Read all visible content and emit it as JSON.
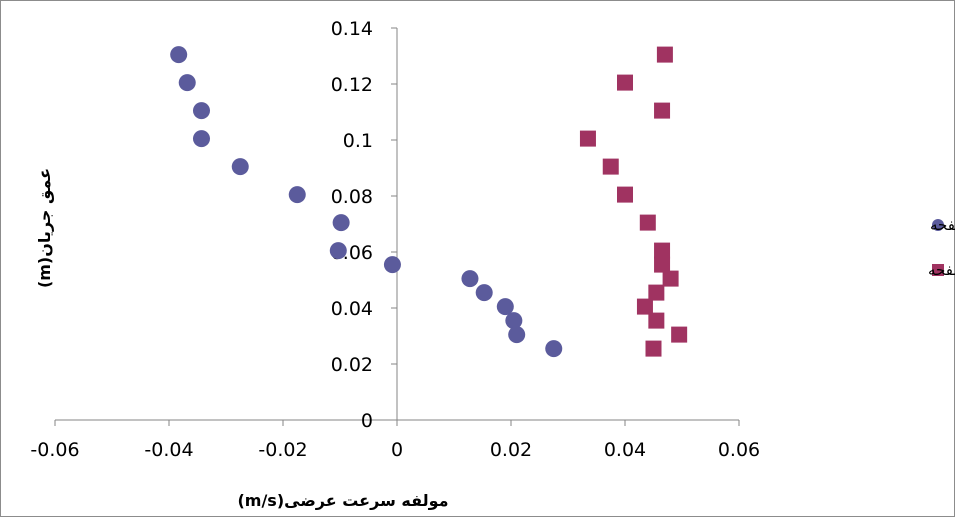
{
  "chart_data": {
    "type": "scatter",
    "xlabel": "مولفه سرعت عرضی(m/s)",
    "ylabel": "عمق جریان(m)",
    "xlim": [
      -0.06,
      0.06
    ],
    "ylim": [
      0,
      0.14
    ],
    "x_ticks": [
      "-0.06",
      "-0.04",
      "-0.02",
      "0",
      "0.02",
      "0.04",
      "0.06"
    ],
    "y_ticks": [
      "0",
      "0.02",
      "0.04",
      "0.06",
      "0.08",
      "0.1",
      "0.12",
      "0.14"
    ],
    "grid": false,
    "legend_position": "right",
    "series": [
      {
        "name": "بدون صفحه",
        "marker": "circle",
        "color": "#5b5b9c",
        "points": [
          [
            -0.0383,
            0.1305
          ],
          [
            -0.0368,
            0.1205
          ],
          [
            -0.0343,
            0.1105
          ],
          [
            -0.0343,
            0.1005
          ],
          [
            -0.0275,
            0.0905
          ],
          [
            -0.0175,
            0.0805
          ],
          [
            -0.0098,
            0.0705
          ],
          [
            -0.0103,
            0.0605
          ],
          [
            -0.0008,
            0.0555
          ],
          [
            0.0128,
            0.0505
          ],
          [
            0.0153,
            0.0455
          ],
          [
            0.019,
            0.0405
          ],
          [
            0.0205,
            0.0355
          ],
          [
            0.021,
            0.0305
          ],
          [
            0.0275,
            0.0255
          ]
        ]
      },
      {
        "name": "با صفحه",
        "marker": "square",
        "color": "#a03361",
        "points": [
          [
            0.047,
            0.1305
          ],
          [
            0.04,
            0.1205
          ],
          [
            0.0465,
            0.1105
          ],
          [
            0.0335,
            0.1005
          ],
          [
            0.0375,
            0.0905
          ],
          [
            0.04,
            0.0805
          ],
          [
            0.044,
            0.0705
          ],
          [
            0.0465,
            0.0605
          ],
          [
            0.0465,
            0.0555
          ],
          [
            0.048,
            0.0505
          ],
          [
            0.0455,
            0.0455
          ],
          [
            0.0435,
            0.0405
          ],
          [
            0.0455,
            0.0355
          ],
          [
            0.0495,
            0.0305
          ],
          [
            0.045,
            0.0255
          ]
        ]
      }
    ]
  }
}
